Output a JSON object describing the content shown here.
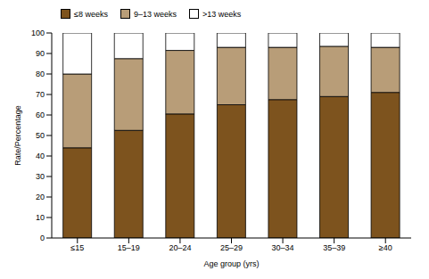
{
  "chart_data": {
    "type": "bar",
    "stacked": true,
    "xlabel": "Age group (yrs)",
    "ylabel": "Rate/Percentage",
    "categories": [
      "≤15",
      "15–19",
      "20–24",
      "25–29",
      "30–34",
      "35–39",
      "≥40"
    ],
    "series": [
      {
        "name": "≤8 weeks",
        "color": "#7d531e",
        "values": [
          44,
          52.5,
          60.5,
          65,
          67.5,
          69,
          71
        ]
      },
      {
        "name": "9–13 weeks",
        "color": "#b89d78",
        "values": [
          36,
          35,
          31,
          28,
          25.5,
          24.5,
          22
        ]
      },
      {
        "name": ">13 weeks",
        "color": "#ffffff",
        "values": [
          20,
          12.5,
          8.5,
          7,
          7,
          6.5,
          7
        ]
      }
    ],
    "ylim": [
      0,
      100
    ],
    "yticks": [
      0,
      10,
      20,
      30,
      40,
      50,
      60,
      70,
      80,
      90,
      100
    ],
    "grid": false,
    "legend": "upper left"
  }
}
